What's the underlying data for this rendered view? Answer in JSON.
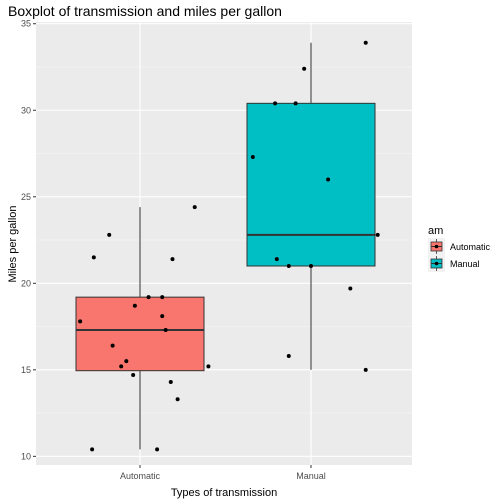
{
  "chart_data": {
    "type": "boxplot",
    "title": "Boxplot of transmission and miles per gallon",
    "xlabel": "Types of transmission",
    "ylabel": "Miles per gallon",
    "categories": [
      "Automatic",
      "Manual"
    ],
    "ylim": [
      9.5,
      35.1
    ],
    "yticks": [
      10,
      15,
      20,
      25,
      30,
      35
    ],
    "grid": true,
    "legend": {
      "title": "am",
      "placement": "right",
      "entries": [
        {
          "label": "Automatic",
          "color": "#F8766D"
        },
        {
          "label": "Manual",
          "color": "#00BFC4"
        }
      ]
    },
    "boxes": [
      {
        "category": "Automatic",
        "color": "#F8766D",
        "min": 10.4,
        "q1": 14.95,
        "median": 17.3,
        "q3": 19.2,
        "max": 24.4
      },
      {
        "category": "Manual",
        "color": "#00BFC4",
        "min": 15.0,
        "q1": 21.0,
        "median": 22.8,
        "q3": 30.4,
        "max": 33.9
      }
    ],
    "points": [
      {
        "category": "Automatic",
        "jitter": -0.35,
        "y": 17.8
      },
      {
        "category": "Automatic",
        "jitter": -0.28,
        "y": 10.4
      },
      {
        "category": "Automatic",
        "jitter": -0.27,
        "y": 21.5
      },
      {
        "category": "Automatic",
        "jitter": -0.18,
        "y": 22.8
      },
      {
        "category": "Automatic",
        "jitter": -0.16,
        "y": 16.4
      },
      {
        "category": "Automatic",
        "jitter": -0.11,
        "y": 15.2
      },
      {
        "category": "Automatic",
        "jitter": -0.08,
        "y": 15.5
      },
      {
        "category": "Automatic",
        "jitter": -0.03,
        "y": 18.7
      },
      {
        "category": "Automatic",
        "jitter": -0.04,
        "y": 14.7
      },
      {
        "category": "Automatic",
        "jitter": 0.05,
        "y": 19.2
      },
      {
        "category": "Automatic",
        "jitter": 0.1,
        "y": 10.4
      },
      {
        "category": "Automatic",
        "jitter": 0.13,
        "y": 19.2
      },
      {
        "category": "Automatic",
        "jitter": 0.13,
        "y": 18.1
      },
      {
        "category": "Automatic",
        "jitter": 0.15,
        "y": 17.3
      },
      {
        "category": "Automatic",
        "jitter": 0.18,
        "y": 14.3
      },
      {
        "category": "Automatic",
        "jitter": 0.19,
        "y": 21.4
      },
      {
        "category": "Automatic",
        "jitter": 0.22,
        "y": 13.3
      },
      {
        "category": "Automatic",
        "jitter": 0.32,
        "y": 24.4
      },
      {
        "category": "Automatic",
        "jitter": 0.4,
        "y": 15.2
      },
      {
        "category": "Manual",
        "jitter": -0.34,
        "y": 27.3
      },
      {
        "category": "Manual",
        "jitter": -0.21,
        "y": 30.4
      },
      {
        "category": "Manual",
        "jitter": -0.2,
        "y": 21.4
      },
      {
        "category": "Manual",
        "jitter": -0.13,
        "y": 21.0
      },
      {
        "category": "Manual",
        "jitter": -0.13,
        "y": 15.8
      },
      {
        "category": "Manual",
        "jitter": -0.09,
        "y": 30.4
      },
      {
        "category": "Manual",
        "jitter": -0.04,
        "y": 32.4
      },
      {
        "category": "Manual",
        "jitter": 0.0,
        "y": 21.0
      },
      {
        "category": "Manual",
        "jitter": 0.1,
        "y": 26.0
      },
      {
        "category": "Manual",
        "jitter": 0.23,
        "y": 19.7
      },
      {
        "category": "Manual",
        "jitter": 0.32,
        "y": 33.9
      },
      {
        "category": "Manual",
        "jitter": 0.32,
        "y": 15.0
      },
      {
        "category": "Manual",
        "jitter": 0.39,
        "y": 22.8
      }
    ]
  }
}
